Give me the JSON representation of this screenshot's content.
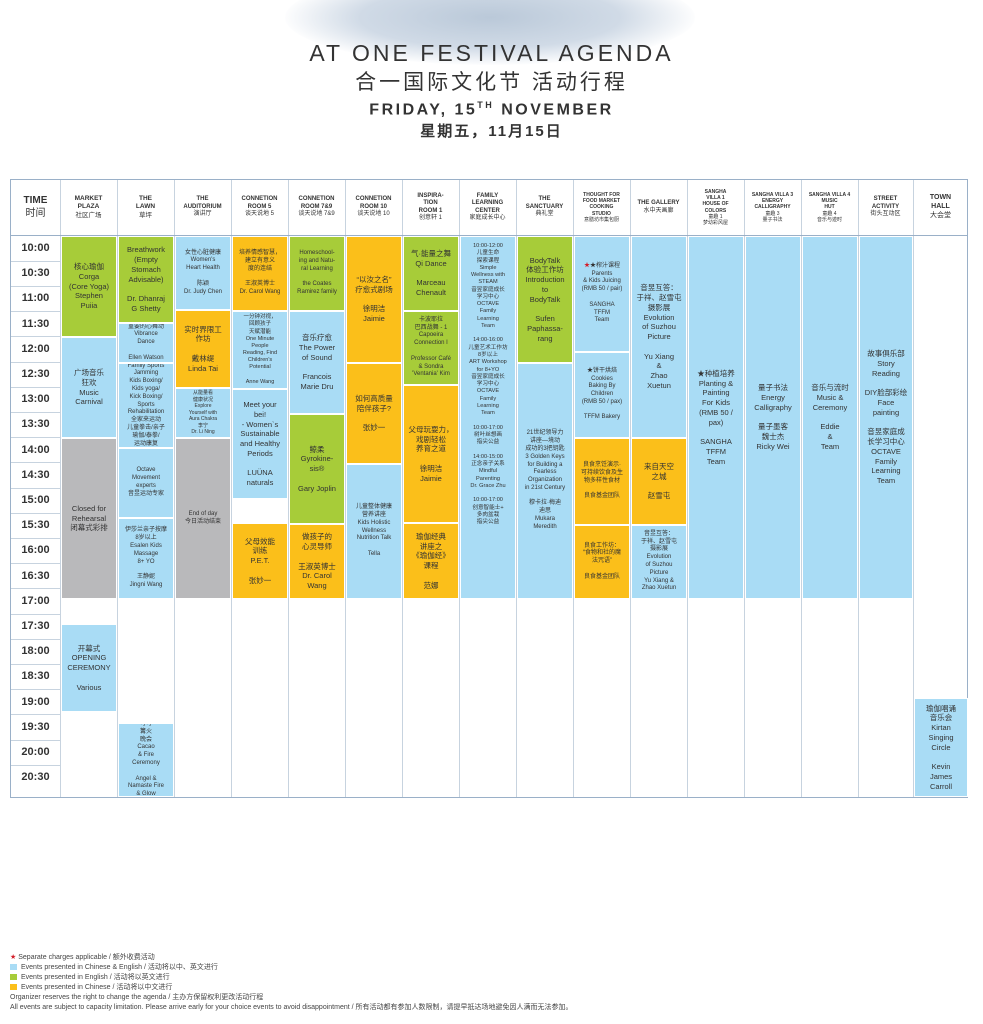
{
  "header": {
    "title_en": "AT ONE FESTIVAL AGENDA",
    "title_zh": "合一国际文化节 活动行程",
    "date_en": "FRIDAY, 15TH NOVEMBER",
    "date_zh": "星期五，11月15日"
  },
  "time_header": {
    "en": "TIME",
    "zh": "时间"
  },
  "times": [
    "10:00",
    "10:30",
    "11:00",
    "11:30",
    "12:00",
    "12:30",
    "13:00",
    "13:30",
    "14:00",
    "14:30",
    "15:00",
    "15:30",
    "16:00",
    "16:30",
    "17:00",
    "17:30",
    "18:00",
    "18:30",
    "19:00",
    "19:30",
    "20:00",
    "20:30"
  ],
  "columns": [
    {
      "en": "MARKET\nPLAZA",
      "zh": "社区广场"
    },
    {
      "en": "THE\nLAWN",
      "zh": "草坪"
    },
    {
      "en": "THE\nAUDITORIUM",
      "zh": "演讲厅"
    },
    {
      "en": "CONNETION\nROOM 5",
      "zh": "谈天说地 5"
    },
    {
      "en": "CONNETION\nROOM 7&9",
      "zh": "谈天说地 7&9"
    },
    {
      "en": "CONNETION\nROOM 10",
      "zh": "谈天说地 10"
    },
    {
      "en": "INSPIRA-\nTION\nROOM 1",
      "zh": "创意轩 1"
    },
    {
      "en": "FAMILY\nLEARNING\nCENTER",
      "zh": "家庭成长中心"
    },
    {
      "en": "THE\nSANCTUARY",
      "zh": "典礼堂"
    },
    {
      "en": "THOUGHT FOR\nFOOD MARKET\nCOOKING\nSTUDIO",
      "zh": "意膳坊市集包厨"
    },
    {
      "en": "THE GALLERY",
      "zh": "水中天画廊"
    },
    {
      "en": "SANGHA\nVILLA 1\nHOUSE OF\nCOLORS",
      "zh": "童趣 1\n梦幼彩风屋"
    },
    {
      "en": "SANGHA VILLA 3\nENERGY\nCALLIGRAPHY",
      "zh": "童趣 3\n量子书法"
    },
    {
      "en": "SANGHA VILLA 4\nMUSIC\nHUT",
      "zh": "童趣 4\n音乐与迹时"
    },
    {
      "en": "STREET\nACTIVITY",
      "zh": "街头互动区"
    },
    {
      "en": "TOWN\nHALL",
      "zh": "大会堂"
    }
  ],
  "events": {
    "market_corga": "核心瑜伽\nCorga\n(Core Yoga)\nStephen\nPuiia",
    "market_carnival": "广场音乐\n狂欢\nMusic\nCarnival",
    "market_closed": "Closed for\nRehearsal\n闭幕式彩排",
    "market_opening": "开幕式\nOPENING\nCEREMONY\n\nVarious",
    "lawn_breathwork": "Breathwork\n(Empty\nStomach\nAdvisable)\n\nDr. Dhanraj\nG Shetty",
    "lawn_vibrance": "重要的心舞动\nVibrance\nDance\n\nEllen Watson",
    "lawn_jamming": "Family Sports\nJamming\nKids Boxing/\nKids yoga/\nKick  Boxing/\nSports\nRehabilitation\n全家来运动\n儿童拳击/亲子\n瑜伽/泰拳/\n运动康复",
    "lawn_octave": "Octave\nMovement\nexperts\n音昱运动专家",
    "lawn_massage": "伊莎兰亲子按摩\n8岁以上\nEsalen Kids\nMassage\n8+ YO\n\n王静妮\nJingni Wang",
    "lawn_cacao": "可可\n篝火\n晚会\nCacao\n& Fire\nCeremony\n\nAngel &\nNamaste Fire\n& Glow",
    "aud_heart": "女性心脏健康\nWomen's\nHeart Health\n\n陈颖\nDr. Judy Chen",
    "aud_lindatai": "实时界限工\n作坊\n\n戴林缇\nLinda Tai",
    "aud_aura": "从能量看\n健康状况\nExplore\nYourself with\nAura Chakra\n李宁\nDr. Li Ning",
    "aud_endofday": "End of day\n今日活动结束",
    "r5_carol": "培养情感智慧，\n建立有意义\n度的连结\n\n王淑英博士\nDr. Carol Wang",
    "r5_oneminute": "一分钟对视，\n回顾孩子\n天赋潜能\nOne Minute\nPeople\nReading, Find\nChildren's\nPotential\n\nAnne Wang",
    "r5_meetyourbeil": "Meet your\nbei!\n- Women`s\nSustainable\nand Healthy\nPeriods\n\nLUÜNA\nnaturals",
    "r5_pet": "父母效能\n训练\nP.E.T.\n\n张妙一",
    "r79_homeschool": "Homeschool-\ning and Natu-\nral Learning\n\nthe Coates\nRamirez family",
    "r79_sound": "音乐疗愈\nThe Power\nof Sound\n\nFrancois\nMarie Dru",
    "r79_gyro": "鲸柔\nGyrokine-\nsis®\n\nGary Joplin",
    "r79_heart": "做孩子的\n心灵导师\n\n王淑英博士\nDr. Carol\nWang",
    "r10_jaimie": "“以汝之名”\n疗愈式剧场\n\n徐明洁\nJaimie",
    "r10_quality": "如何高质量\n陪伴孩子?\n\n张妙一",
    "r10_kidsholistic": "儿童整体健康\n营养讲座\nKids Holistic\nWellness\nNutrition Talk\n\nTella",
    "i1_qidance": "气·能量之舞\nQi Dance\n\nMarceau\nChenault",
    "i1_capoeira": "卡波耶拉\n巴西战舞 - 1\nCapoeira\nConnection I\n\nProfessor Café\n& Sondra\n'Ventania' Kim",
    "i1_parents": "父母玩耍力，\n戏剧轻松\n养育之道\n\n徐明洁\nJaimie",
    "i1_yoga": "瑜伽经典\n讲座之\n《瑜伽经》\n课程\n\n范娜",
    "flc_all": "10:00-12:00\n儿童生命\n探索课程\nSimple\nWellness with\nSTEAM\n音昱家庭成长\n学习中心\nOCTAVE\nFamily\nLearning\nTeam\n\n14:00-16:00\n儿童艺术工作坊\n8岁以上\nART Workshop\nfor 8+YO\n音昱家庭成长\n学习中心\nOCTAVE\nFamily\nLearning\nTeam\n\n10:00-17:00\n树叶丝想画\n指尖公益\n\n14:00-15:00\n正念亲子关系\nMindful\nParenting\nDr. Grace Zhu\n\n10:00-17:00\n创意智能士+\n多肉盆栽\n指尖公益",
    "sanc_bodytalk": "BodyTalk\n体验工作坊\nIntroduction\nto\nBodyTalk\n\nSufen\nPaphassa-\nrang",
    "sanc_keys": "21世纪领导力\n讲座—境动\n成功的3把钥匙\n3 Golden Keys\nfor Building a\nFearless\nOrganization\nin 21st Century\n\n穆卡拉·梅迪\n迪思\nMukara\nMeredith",
    "food_juicing": "★榨汁课程\nParents\n& Kids Juicing\n(RMB 50 / pair)\n\nSANGHA\nTFFM\nTeam",
    "food_cookies": "★饼干烘焙\nCookies\nBaking By\nChildren\n(RMB 50 / pax)\n\nTFFM Bakery",
    "food_lecture1": "良食烹饪演示·\n可持续饮食及生\n物多样性食材\n\n良食基金团队",
    "food_lecture2": "良食工作坊：\n“食物和社的魔\n法咒语”\n\n良食基金团队",
    "gal_suzhou1": "音昱互答：\n于祥、赵雪屯\n摄影展\nEvolution\nof Suzhou\nPicture\n\nYu Xiang\n&\nZhao\nXuetun",
    "gal_sky": "来自天空\n之城\n\n赵雪屯",
    "gal_suzhou2": "音昱互答：\n于祥、赵雪屯\n摄影展\nEvolution\nof Suzhou\nPicture\nYu Xiang &\nZhao Xuetun",
    "villa1_planting": "★种植培养\nPlanting &\nPainting\nFor Kids\n(RMB 50 /\npax)\n\nSANGHA\nTFFM\nTeam",
    "villa3_calligraphy": "量子书法\nEnergy\nCalligraphy\n\n量子墨客\n魏士杰\nRicky Wei",
    "villa4_music": "音乐与流时\nMusic &\nCeremony\n\nEddie\n&\nTeam",
    "street_story": "故事俱乐部\nStory\nReading\n\nDIY脸部彩绘\nFace\npainting\n\n音昱家庭成\n长学习中心\nOCTAVE\nFamily\nLearning\nTeam",
    "town_kirtan": "瑜伽唱诵\n音乐会\nKirtan\nSinging\nCircle\n\nKevin\nJames\nCarroll"
  },
  "legend": {
    "separate_charges": "Separate charges applicable  /  额外收费活动",
    "chinese_english": "Events presented in Chinese & English  /  活动将以中、英文进行",
    "english": "Events presented in English  /  活动将以英文进行",
    "chinese": "Events presented in Chinese  /  活动将以中文进行",
    "organizer_note": "Organizer reserves the right to change the agenda  /  主办方保留权利更改活动行程",
    "capacity_note": "All events are subject to capacity limitation.  Please arrive early for your choice events to avoid disappointment  /  所有活动都有参加人数限制，请提早抵达场地避免因人满而无法参加。"
  },
  "colors": {
    "blue": "#a9dcf5",
    "green": "#a7cc39",
    "yellow": "#fbbf1a",
    "grey": "#b9b9bb",
    "star": "#d31f2a"
  }
}
